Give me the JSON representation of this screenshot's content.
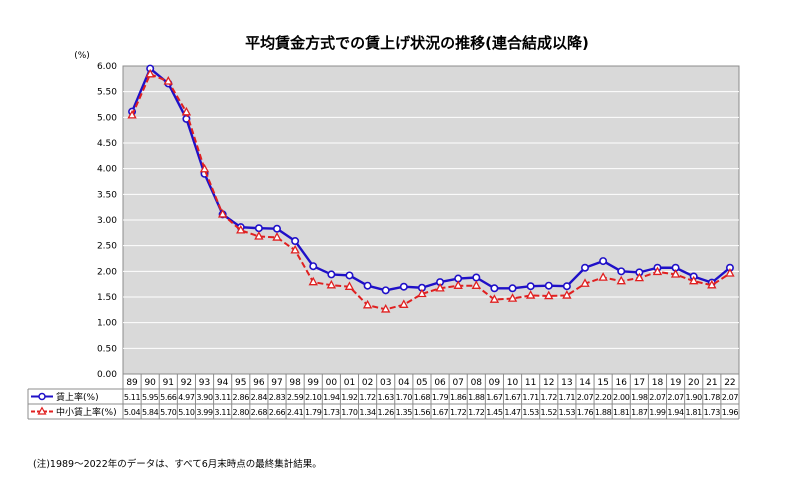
{
  "chart_data": {
    "type": "line",
    "title": "平均賃金方式での賃上げ状況の推移(連合結成以降)",
    "ylabel": "(%)",
    "ylim": [
      0,
      6
    ],
    "yticks": [
      "0.00",
      "0.50",
      "1.00",
      "1.50",
      "2.00",
      "2.50",
      "3.00",
      "3.50",
      "4.00",
      "4.50",
      "5.00",
      "5.50",
      "6.00"
    ],
    "categories": [
      "89",
      "90",
      "91",
      "92",
      "93",
      "94",
      "95",
      "96",
      "97",
      "98",
      "99",
      "00",
      "01",
      "02",
      "03",
      "04",
      "05",
      "06",
      "07",
      "08",
      "09",
      "10",
      "11",
      "12",
      "13",
      "14",
      "15",
      "16",
      "17",
      "18",
      "19",
      "20",
      "21",
      "22"
    ],
    "series": [
      {
        "name": "賃上率(%)",
        "color": "#1f10c8",
        "marker": "circle",
        "values": [
          5.11,
          5.95,
          5.66,
          4.97,
          3.9,
          3.11,
          2.86,
          2.84,
          2.83,
          2.59,
          2.1,
          1.94,
          1.92,
          1.72,
          1.63,
          1.7,
          1.68,
          1.79,
          1.86,
          1.88,
          1.67,
          1.67,
          1.71,
          1.72,
          1.71,
          2.07,
          2.2,
          2.0,
          1.98,
          2.07,
          2.07,
          1.9,
          1.78,
          2.07
        ],
        "labels": [
          "5.11",
          "5.95",
          "5.66",
          "4.97",
          "3.90",
          "3.11",
          "2.86",
          "2.84",
          "2.83",
          "2.59",
          "2.10",
          "1.94",
          "1.92",
          "1.72",
          "1.63",
          "1.70",
          "1.68",
          "1.79",
          "1.86",
          "1.88",
          "1.67",
          "1.67",
          "1.71",
          "1.72",
          "1.71",
          "2.07",
          "2.20",
          "2.00",
          "1.98",
          "2.07",
          "2.07",
          "1.90",
          "1.78",
          "2.07"
        ]
      },
      {
        "name": "中小賃上率(%)",
        "color": "#e02020",
        "marker": "triangle",
        "values": [
          5.04,
          5.84,
          5.7,
          5.1,
          3.99,
          3.11,
          2.8,
          2.68,
          2.66,
          2.41,
          1.79,
          1.73,
          1.7,
          1.34,
          1.26,
          1.35,
          1.56,
          1.67,
          1.72,
          1.72,
          1.45,
          1.47,
          1.53,
          1.52,
          1.53,
          1.76,
          1.88,
          1.81,
          1.87,
          1.99,
          1.94,
          1.81,
          1.73,
          1.96
        ],
        "labels": [
          "5.04",
          "5.84",
          "5.70",
          "5.10",
          "3.99",
          "3.11",
          "2.80",
          "2.68",
          "2.66",
          "2.41",
          "1.79",
          "1.73",
          "1.70",
          "1.34",
          "1.26",
          "1.35",
          "1.56",
          "1.67",
          "1.72",
          "1.72",
          "1.45",
          "1.47",
          "1.53",
          "1.52",
          "1.53",
          "1.76",
          "1.88",
          "1.81",
          "1.87",
          "1.99",
          "1.94",
          "1.81",
          "1.73",
          "1.96"
        ]
      }
    ],
    "grid": true,
    "legend": "data-table-left",
    "note": "(注)1989〜2022年のデータは、すべて6月末時点の最終集計結果。"
  },
  "colors": {
    "plot_bg": "#d9d9d9",
    "grid": "#ffffff",
    "border": "#8c8c8c"
  }
}
